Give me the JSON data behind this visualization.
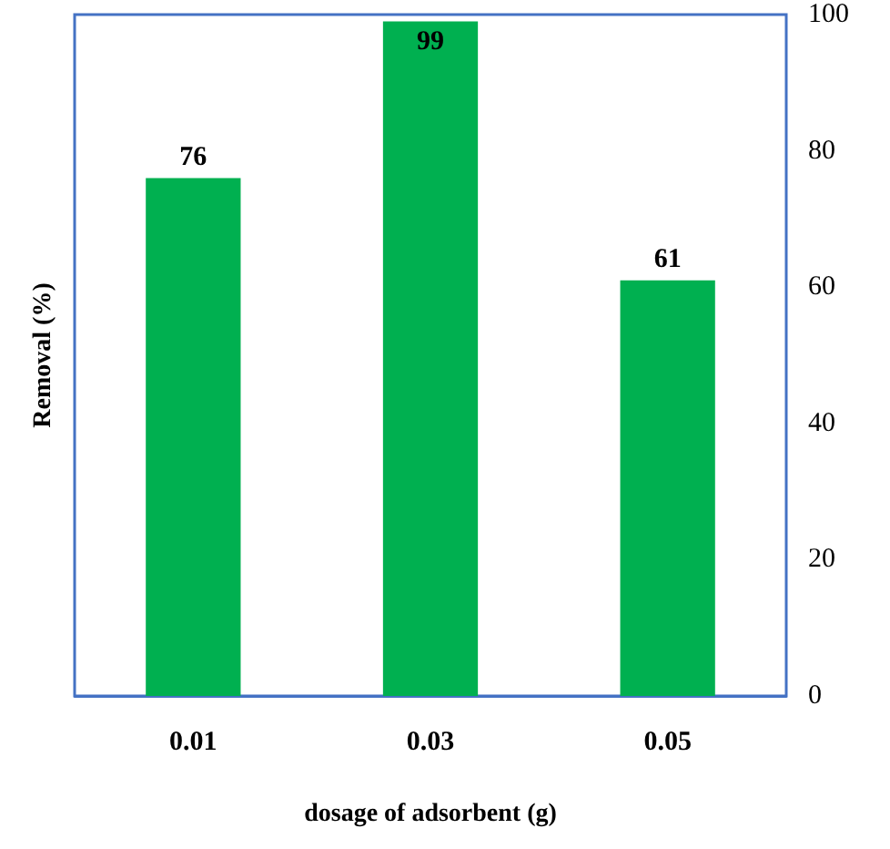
{
  "chart_data": {
    "type": "bar",
    "xlabel": "dosage of adsorbent (g)",
    "ylabel": "Removal (%)",
    "categories": [
      "0.01",
      "0.03",
      "0.05"
    ],
    "values": [
      76,
      99,
      61
    ],
    "color": "#00b050",
    "ylim": [
      0,
      100
    ],
    "yticks": [
      0,
      20,
      40,
      60,
      80,
      100
    ],
    "data_labels": true
  }
}
